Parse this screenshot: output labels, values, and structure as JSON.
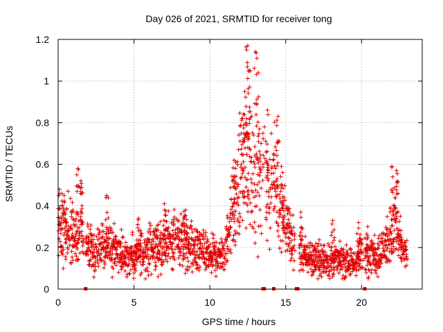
{
  "chart_data": {
    "type": "scatter",
    "title": "Day 026 of 2021, SRMTID for receiver tong",
    "xlabel": "GPS time / hours",
    "ylabel": "SRMTID / TECUs",
    "xlim": [
      0,
      24
    ],
    "ylim": [
      0,
      1.2
    ],
    "x_ticks": [
      0,
      5,
      10,
      15,
      20
    ],
    "x_tick_labels": [
      "0",
      "5",
      "10",
      "15",
      "20"
    ],
    "y_ticks": [
      0,
      0.2,
      0.4,
      0.6,
      0.8,
      1.0,
      1.2
    ],
    "y_tick_labels": [
      "0",
      "0.2",
      "0.4",
      "0.6",
      "0.8",
      "1",
      "1.2"
    ],
    "grid": true,
    "marker": "+",
    "color": "#e00000",
    "series": [
      {
        "name": "SRMTID",
        "profile": [
          [
            0.0,
            0.28
          ],
          [
            0.3,
            0.3
          ],
          [
            0.6,
            0.3
          ],
          [
            1.2,
            0.24
          ],
          [
            1.4,
            0.32
          ],
          [
            1.8,
            0.2
          ],
          [
            2.5,
            0.17
          ],
          [
            3.2,
            0.22
          ],
          [
            4.0,
            0.17
          ],
          [
            5.0,
            0.16
          ],
          [
            6.0,
            0.19
          ],
          [
            7.0,
            0.22
          ],
          [
            8.0,
            0.24
          ],
          [
            9.0,
            0.2
          ],
          [
            10.0,
            0.16
          ],
          [
            11.0,
            0.17
          ],
          [
            11.5,
            0.38
          ],
          [
            12.0,
            0.5
          ],
          [
            12.5,
            0.62
          ],
          [
            13.0,
            0.55
          ],
          [
            13.5,
            0.45
          ],
          [
            14.0,
            0.48
          ],
          [
            14.5,
            0.45
          ],
          [
            15.0,
            0.32
          ],
          [
            15.5,
            0.22
          ],
          [
            16.5,
            0.15
          ],
          [
            17.5,
            0.14
          ],
          [
            18.5,
            0.14
          ],
          [
            19.5,
            0.12
          ],
          [
            20.0,
            0.17
          ],
          [
            21.0,
            0.17
          ],
          [
            21.8,
            0.22
          ],
          [
            22.2,
            0.35
          ],
          [
            22.6,
            0.2
          ],
          [
            23.0,
            0.15
          ]
        ],
        "peaks": [
          [
            0.1,
            0.46
          ],
          [
            0.4,
            0.45
          ],
          [
            1.3,
            0.58
          ],
          [
            1.5,
            0.52
          ],
          [
            3.2,
            0.45
          ],
          [
            5.3,
            0.34
          ],
          [
            7.0,
            0.41
          ],
          [
            8.4,
            0.38
          ],
          [
            11.6,
            0.62
          ],
          [
            12.1,
            0.82
          ],
          [
            12.3,
            0.95
          ],
          [
            12.5,
            1.17
          ],
          [
            12.6,
            1.05
          ],
          [
            13.0,
            1.14
          ],
          [
            13.2,
            1.04
          ],
          [
            13.6,
            0.78
          ],
          [
            13.8,
            0.86
          ],
          [
            14.2,
            0.65
          ],
          [
            14.5,
            0.83
          ],
          [
            14.8,
            0.56
          ],
          [
            16.0,
            0.37
          ],
          [
            18.1,
            0.33
          ],
          [
            19.8,
            0.32
          ],
          [
            20.4,
            0.3
          ],
          [
            22.0,
            0.59
          ],
          [
            22.3,
            0.57
          ]
        ]
      }
    ],
    "data_gaps": [
      [
        1.7,
        1.8
      ],
      [
        13.4,
        13.7
      ],
      [
        14.1,
        14.2
      ],
      [
        15.6,
        15.9
      ],
      [
        20.1,
        20.2
      ]
    ]
  }
}
